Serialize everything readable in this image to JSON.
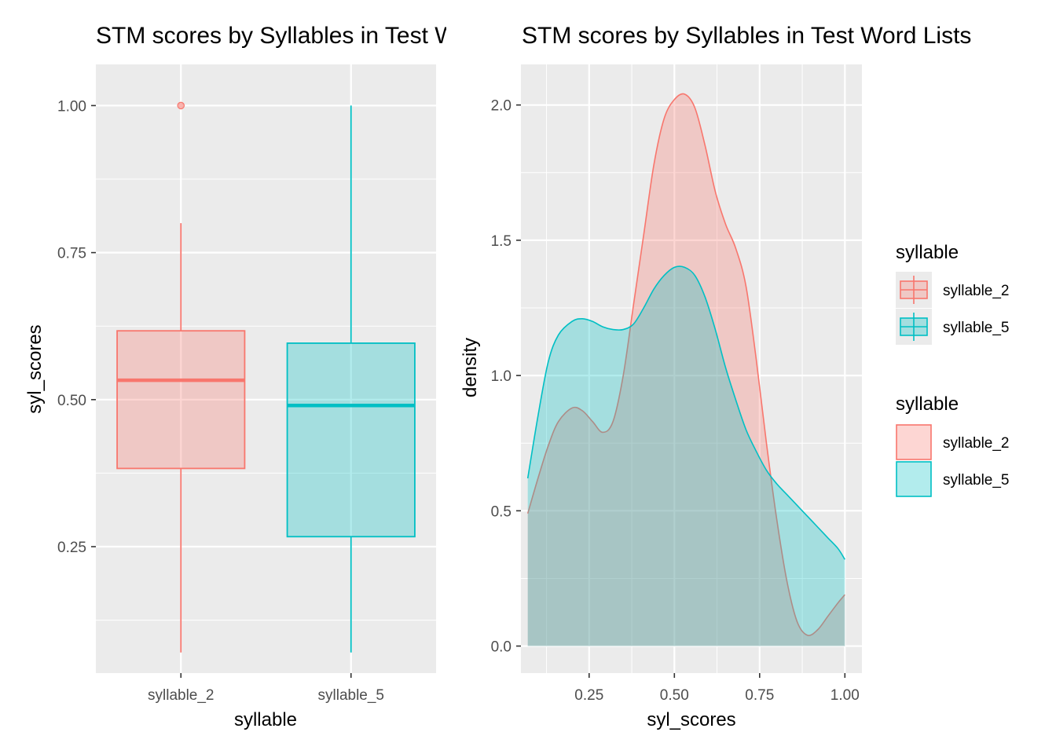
{
  "chart_data": [
    {
      "type": "box",
      "title": "STM scores by Syllables in Test Word Lists",
      "xlabel": "syllable",
      "ylabel": "syl_scores",
      "categories": [
        "syllable_2",
        "syllable_5"
      ],
      "ylim": [
        0.035,
        1.07
      ],
      "yticks": [
        0.25,
        0.5,
        0.75,
        1.0
      ],
      "ytick_labels": [
        "0.25",
        "0.50",
        "0.75",
        "1.00"
      ],
      "grid": true,
      "series": [
        {
          "name": "syllable_2",
          "lower_whisker": 0.07,
          "q1": 0.383,
          "median": 0.533,
          "q3": 0.617,
          "upper_whisker": 0.8,
          "outliers": [
            1.0
          ]
        },
        {
          "name": "syllable_5",
          "lower_whisker": 0.07,
          "q1": 0.267,
          "median": 0.49,
          "q3": 0.596,
          "upper_whisker": 1.0,
          "outliers": []
        }
      ]
    },
    {
      "type": "area",
      "title": "STM scores by Syllables in Test Word Lists",
      "xlabel": "syl_scores",
      "ylabel": "density",
      "xlim": [
        0.05,
        1.05
      ],
      "ylim": [
        -0.1,
        2.15
      ],
      "xticks": [
        0.25,
        0.5,
        0.75,
        1.0
      ],
      "xtick_labels": [
        "0.25",
        "0.50",
        "0.75",
        "1.00"
      ],
      "yticks": [
        0.0,
        0.5,
        1.0,
        1.5,
        2.0
      ],
      "ytick_labels": [
        "0.0",
        "0.5",
        "1.0",
        "1.5",
        "2.0"
      ],
      "grid": true,
      "series": [
        {
          "name": "syllable_2",
          "x": [
            0.07,
            0.1,
            0.13,
            0.16,
            0.2,
            0.23,
            0.26,
            0.29,
            0.32,
            0.35,
            0.38,
            0.41,
            0.44,
            0.47,
            0.5,
            0.53,
            0.56,
            0.59,
            0.62,
            0.65,
            0.68,
            0.71,
            0.74,
            0.77,
            0.8,
            0.83,
            0.86,
            0.89,
            0.92,
            0.95,
            0.98,
            1.0
          ],
          "y": [
            0.49,
            0.62,
            0.74,
            0.83,
            0.88,
            0.87,
            0.83,
            0.79,
            0.83,
            1.0,
            1.26,
            1.52,
            1.78,
            1.95,
            2.02,
            2.04,
            1.99,
            1.85,
            1.68,
            1.56,
            1.47,
            1.33,
            1.06,
            0.75,
            0.47,
            0.24,
            0.09,
            0.04,
            0.06,
            0.11,
            0.16,
            0.19
          ]
        },
        {
          "name": "syllable_5",
          "x": [
            0.07,
            0.1,
            0.13,
            0.16,
            0.2,
            0.23,
            0.26,
            0.29,
            0.32,
            0.35,
            0.38,
            0.41,
            0.44,
            0.47,
            0.5,
            0.53,
            0.56,
            0.59,
            0.62,
            0.65,
            0.68,
            0.71,
            0.74,
            0.77,
            0.8,
            0.83,
            0.86,
            0.89,
            0.92,
            0.95,
            0.98,
            1.0
          ],
          "y": [
            0.62,
            0.85,
            1.05,
            1.15,
            1.2,
            1.21,
            1.2,
            1.18,
            1.17,
            1.17,
            1.19,
            1.25,
            1.32,
            1.37,
            1.4,
            1.4,
            1.37,
            1.29,
            1.17,
            1.03,
            0.91,
            0.8,
            0.72,
            0.65,
            0.6,
            0.56,
            0.52,
            0.48,
            0.44,
            0.4,
            0.36,
            0.32
          ]
        }
      ]
    }
  ],
  "legend": {
    "boxes": {
      "title": "syllable",
      "items": [
        "syllable_2",
        "syllable_5"
      ]
    },
    "fills": {
      "title": "syllable",
      "items": [
        "syllable_2",
        "syllable_5"
      ]
    }
  },
  "colors": {
    "syllable_2": "#F8766D",
    "syllable_5": "#00BFC4",
    "panel": "#EBEBEB",
    "grid": "#FFFFFF"
  }
}
